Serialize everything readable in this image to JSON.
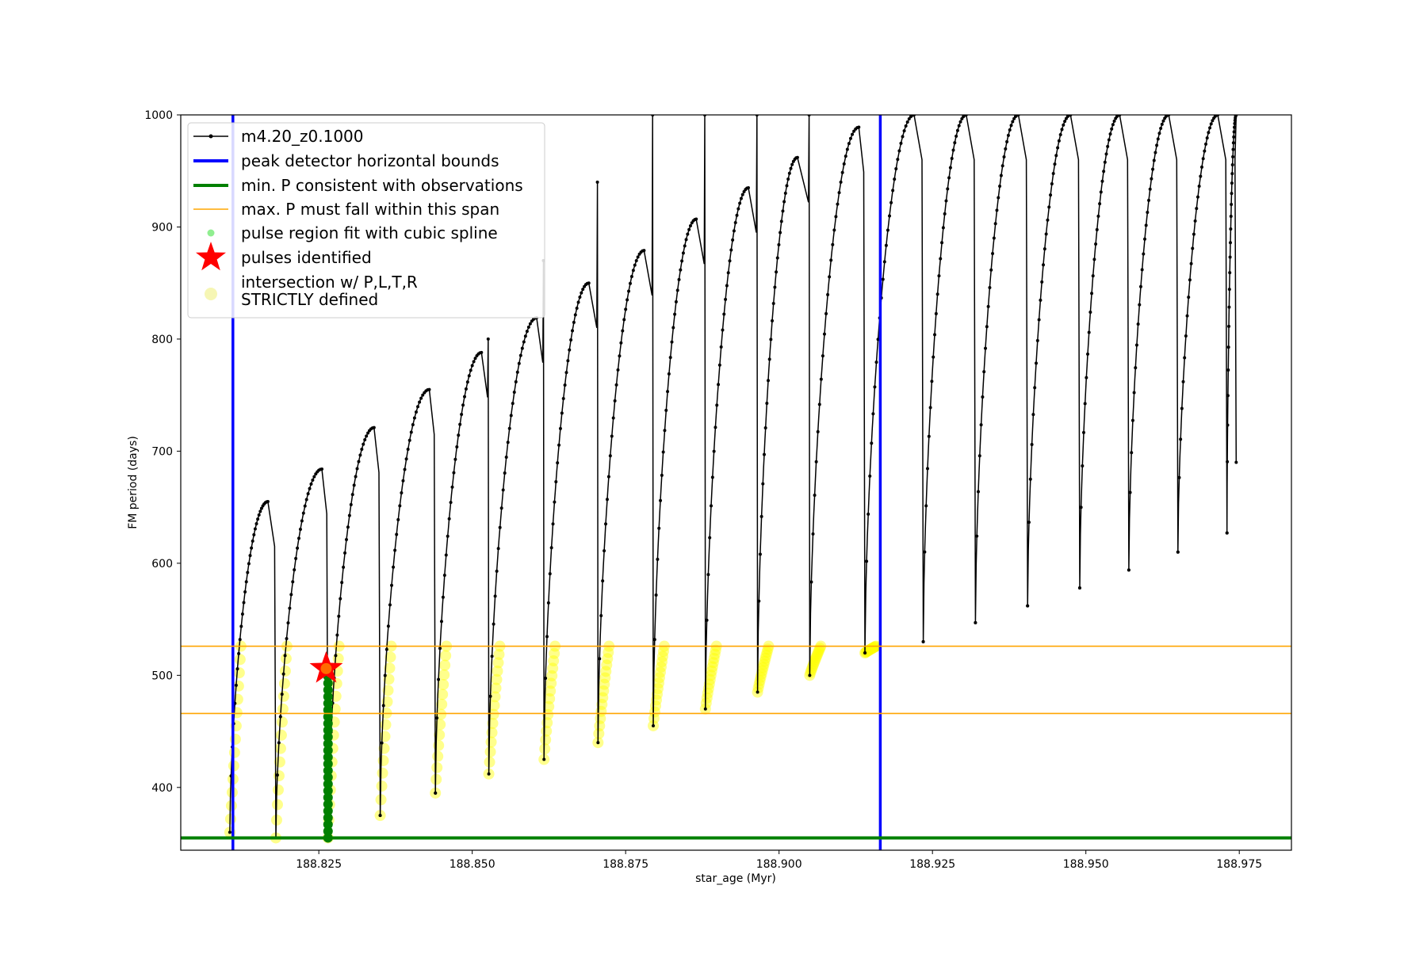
{
  "chart_data": {
    "type": "line",
    "title": "",
    "xlabel": "star_age (Myr)",
    "ylabel": "FM period (days)",
    "xlim": [
      188.8025,
      188.9835
    ],
    "ylim": [
      344,
      1000
    ],
    "xticks": [
      "188.825",
      "188.850",
      "188.875",
      "188.900",
      "188.925",
      "188.950",
      "188.975"
    ],
    "yticks": [
      "400",
      "500",
      "600",
      "700",
      "800",
      "900",
      "1000"
    ],
    "grid": false,
    "legend_position": "top-left",
    "colors": {
      "track": "#000000",
      "bounds": "#0000ff",
      "min_p": "#008000",
      "max_p_span": "#ffa500",
      "spline": "#90ee90",
      "spline_dark": "#008000",
      "pulse": "#ff0000",
      "pulse_fill": "#ff6a00",
      "strict": "#ffff00",
      "strict_legend": "#f6f6b4"
    },
    "legend": [
      {
        "label": "m4.20_z0.1000",
        "kind": "line-marker",
        "color": "#000000"
      },
      {
        "label": "peak detector horizontal bounds",
        "kind": "line",
        "color": "#0000ff"
      },
      {
        "label": "min. P consistent with observations",
        "kind": "line",
        "color": "#008000"
      },
      {
        "label": "max. P must fall within this span",
        "kind": "thin-line",
        "color": "#ffa500"
      },
      {
        "label": "pulse region fit with cubic spline",
        "kind": "dot",
        "color": "#90ee90"
      },
      {
        "label": "pulses identified",
        "kind": "star",
        "color": "#ff0000"
      },
      {
        "label": "intersection w/ P,L,T,R",
        "label2": "STRICTLY defined",
        "kind": "circle",
        "color": "#f6f6b4"
      }
    ],
    "series": [
      {
        "name": "m4.20_z0.1000",
        "description_type": "thermal-pulse sawtooth",
        "pulses": [
          {
            "start": 188.8105,
            "peak_x": 188.8167,
            "peak": 655,
            "drop": 188.818,
            "min": 355
          },
          {
            "start": 188.818,
            "peak_x": 188.8255,
            "peak": 684,
            "drop": 188.8265,
            "min": 355
          },
          {
            "start": 188.8265,
            "peak_x": 188.834,
            "peak": 721,
            "drop": 188.835,
            "min": 375
          },
          {
            "start": 188.835,
            "peak_x": 188.843,
            "peak": 755,
            "drop": 188.844,
            "min": 395
          },
          {
            "start": 188.844,
            "peak_x": 188.8515,
            "peak": 788,
            "drop": 188.8527,
            "min": 412,
            "spike": 800
          },
          {
            "start": 188.8527,
            "peak_x": 188.8605,
            "peak": 819,
            "drop": 188.8617,
            "min": 425,
            "spike": 870
          },
          {
            "start": 188.8617,
            "peak_x": 188.869,
            "peak": 850,
            "drop": 188.8705,
            "min": 440,
            "spike": 940
          },
          {
            "start": 188.8705,
            "peak_x": 188.878,
            "peak": 879,
            "drop": 188.8795,
            "min": 455,
            "spike": 1000
          },
          {
            "start": 188.8795,
            "peak_x": 188.8865,
            "peak": 907,
            "drop": 188.888,
            "min": 470,
            "spike": 1000
          },
          {
            "start": 188.888,
            "peak_x": 188.895,
            "peak": 935,
            "drop": 188.8965,
            "min": 485,
            "spike": 1000
          },
          {
            "start": 188.8965,
            "peak_x": 188.903,
            "peak": 962,
            "drop": 188.905,
            "min": 500,
            "spike": 1000
          },
          {
            "start": 188.905,
            "peak_x": 188.913,
            "peak": 989,
            "drop": 188.914,
            "min": 520
          },
          {
            "start": 188.914,
            "peak_x": 188.922,
            "peak": 1000,
            "drop": 188.9235,
            "min": 530
          },
          {
            "start": 188.9235,
            "peak_x": 188.9305,
            "peak": 1000,
            "drop": 188.932,
            "min": 547
          },
          {
            "start": 188.932,
            "peak_x": 188.939,
            "peak": 1000,
            "drop": 188.9405,
            "min": 562
          },
          {
            "start": 188.9405,
            "peak_x": 188.9475,
            "peak": 1000,
            "drop": 188.949,
            "min": 578
          },
          {
            "start": 188.949,
            "peak_x": 188.9555,
            "peak": 1000,
            "drop": 188.957,
            "min": 594
          },
          {
            "start": 188.957,
            "peak_x": 188.9635,
            "peak": 1000,
            "drop": 188.965,
            "min": 610
          },
          {
            "start": 188.965,
            "peak_x": 188.9715,
            "peak": 1000,
            "drop": 188.973,
            "min": 627
          },
          {
            "start": 188.973,
            "peak_x": 188.9745,
            "peak": 1000,
            "drop": 188.9745,
            "min": 690
          }
        ]
      },
      {
        "name": "peak detector horizontal bounds",
        "x": [
          188.811,
          188.9165
        ]
      },
      {
        "name": "min. P consistent with observations",
        "y": 355
      },
      {
        "name": "max. P must fall within this span",
        "y": [
          466,
          526
        ]
      },
      {
        "name": "pulse region fit with cubic spline",
        "x": 188.8265,
        "y_range": [
          355,
          510
        ]
      },
      {
        "name": "pulses identified",
        "x": 188.8262,
        "y": 506
      }
    ]
  }
}
